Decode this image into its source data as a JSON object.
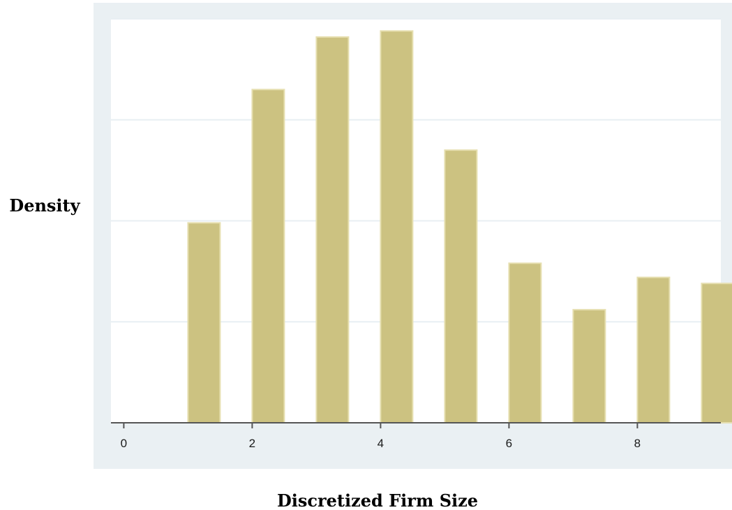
{
  "chart_data": {
    "type": "bar",
    "title": "",
    "xlabel": "Discretized Firm Size",
    "ylabel": "Density",
    "xlim": [
      -0.2,
      9.3
    ],
    "ylim": [
      0,
      0.2
    ],
    "xticks": [
      0,
      2,
      4,
      6,
      8
    ],
    "x_tick_labels": [
      "0",
      "2",
      "4",
      "6",
      "8"
    ],
    "y_tick_labels_shown": false,
    "bar_width": 0.5,
    "grid": true,
    "legend": "none",
    "series": [
      {
        "x": [
          1,
          2,
          3,
          4,
          5,
          6,
          7,
          8,
          9
        ],
        "values": [
          0.099,
          0.165,
          0.191,
          0.194,
          0.135,
          0.079,
          0.056,
          0.072,
          0.069
        ]
      }
    ]
  },
  "colors": {
    "plot_background": "#eaf0f3",
    "plot_area": "#ffffff",
    "bar_fill": "#ccc281",
    "bar_stroke": "#e6dfb0",
    "gridline": "#e8eff3",
    "axis": "#555555"
  }
}
